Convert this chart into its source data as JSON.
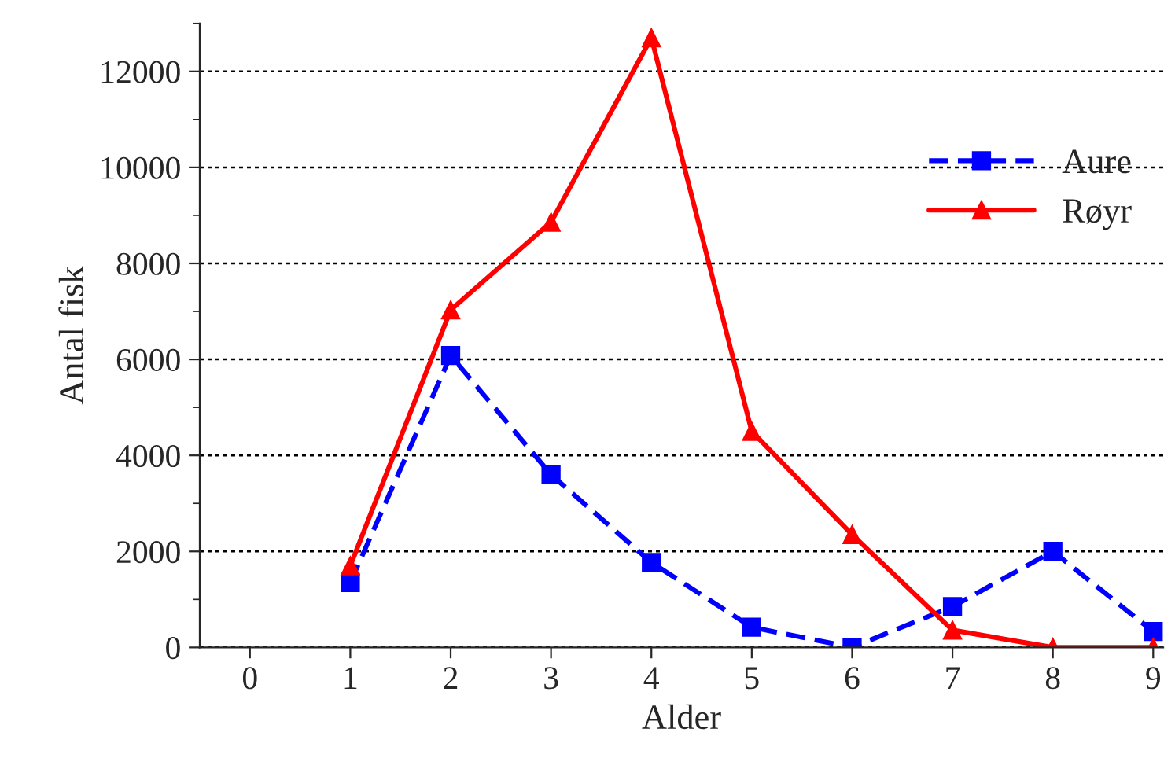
{
  "chart_data": {
    "type": "line",
    "xlabel": "Alder",
    "ylabel": "Antal fisk",
    "x": [
      1,
      2,
      3,
      4,
      5,
      6,
      7,
      8,
      9
    ],
    "series": [
      {
        "name": "Aure",
        "color": "#0000ff",
        "values": [
          1350,
          6080,
          3600,
          1770,
          420,
          0,
          850,
          2000,
          330
        ],
        "marker": "square",
        "line_style": "dashed"
      },
      {
        "name": "Røyr",
        "color": "#ff0000",
        "values": [
          1700,
          7030,
          8860,
          12700,
          4500,
          2350,
          360,
          0,
          0
        ],
        "marker": "triangle",
        "line_style": "solid"
      }
    ],
    "xlim": [
      -0.5,
      9.1
    ],
    "xticks": [
      0,
      1,
      2,
      3,
      4,
      5,
      6,
      7,
      8,
      9
    ],
    "ylim": [
      0,
      13000
    ],
    "yticks": [
      0,
      2000,
      4000,
      6000,
      8000,
      10000,
      12000
    ],
    "grid": "y",
    "legend": "upper right"
  }
}
